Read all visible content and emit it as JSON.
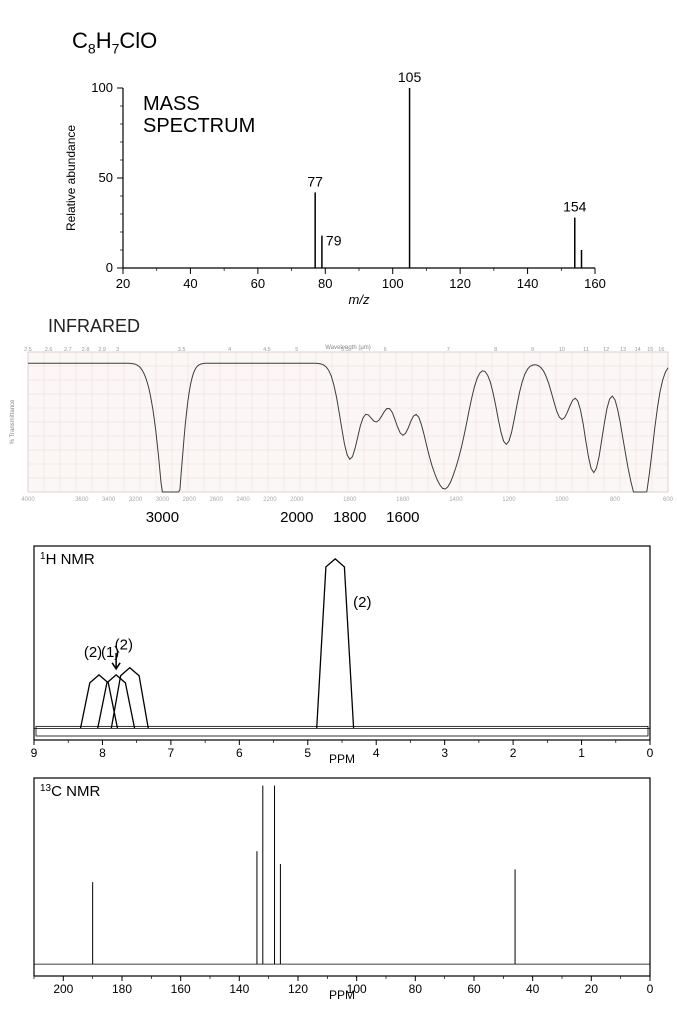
{
  "formula": {
    "text": "C8H7ClO",
    "display_html": "C<sub>8</sub>H<sub>7</sub>ClO"
  },
  "mass_spectrum": {
    "type": "bar",
    "title": "MASS\nSPECTRUM",
    "title_fontsize": 20,
    "xlabel": "m/z",
    "xlabel_fontstyle": "italic",
    "ylabel": "Relative abundance",
    "label_fontsize": 12,
    "xlim": [
      20,
      160
    ],
    "xtick_step": 20,
    "ylim": [
      0,
      100
    ],
    "ytick_step": 50,
    "minor_ytick_step": 10,
    "axis_color": "#000000",
    "line_width": 1.2,
    "background_color": "#ffffff",
    "peak_color": "#000000",
    "peak_width": 1.5,
    "peaks": [
      {
        "mz": 77,
        "abundance": 42,
        "label": "77",
        "label_pos": "top"
      },
      {
        "mz": 79,
        "abundance": 18,
        "label": "79",
        "label_pos": "right"
      },
      {
        "mz": 105,
        "abundance": 100,
        "label": "105",
        "label_pos": "top"
      },
      {
        "mz": 154,
        "abundance": 28,
        "label": "154",
        "label_pos": "top"
      },
      {
        "mz": 156,
        "abundance": 10,
        "label": null
      }
    ],
    "origin_label": "0"
  },
  "infrared": {
    "type": "line",
    "section_label": "INFRARED",
    "top_axis_label": "Wavelength (μm)",
    "top_scale_values": [
      2.5,
      2.6,
      2.7,
      2.8,
      2.9,
      3,
      3.5,
      4,
      4.5,
      5,
      5.5,
      6,
      7,
      8,
      9,
      10,
      11,
      12,
      13,
      14,
      15,
      16
    ],
    "top_scale_fontsize": 7,
    "xlabel": "Wavenumber (cm⁻¹)",
    "ylabel": "% Transmittance",
    "background_color": "#fbf7f6",
    "grid_color": "#f3d9d6",
    "grid_on": true,
    "trace_color": "#3d3d3d",
    "trace_width": 1,
    "bottom_scale_values_fine": [
      4000,
      3600,
      3400,
      3200,
      3000,
      2800,
      2600,
      2400,
      2200
    ],
    "bottom_scale_values_coarse": [
      2000,
      1800,
      1600,
      1400,
      1200,
      1000,
      800,
      600
    ],
    "bold_ticks": [
      "3000",
      "2000",
      "1800",
      "1600"
    ],
    "bold_tick_fontsize": 15,
    "absorption_bands": [
      {
        "cm": 3050,
        "depth": 0.18
      },
      {
        "cm": 2960,
        "depth": 0.82
      },
      {
        "cm": 2900,
        "depth": 0.72
      },
      {
        "cm": 1800,
        "depth": 0.68
      },
      {
        "cm": 1700,
        "depth": 0.4
      },
      {
        "cm": 1600,
        "depth": 0.5
      },
      {
        "cm": 1500,
        "depth": 0.5
      },
      {
        "cm": 1440,
        "depth": 0.68
      },
      {
        "cm": 1380,
        "depth": 0.45
      },
      {
        "cm": 1210,
        "depth": 0.58
      },
      {
        "cm": 1000,
        "depth": 0.4
      },
      {
        "cm": 880,
        "depth": 0.78
      },
      {
        "cm": 750,
        "depth": 0.55
      },
      {
        "cm": 690,
        "depth": 0.88
      }
    ]
  },
  "hnmr": {
    "type": "line",
    "label": "¹H NMR",
    "label_display_html": "<sup>1</sup>H NMR",
    "xlabel": "PPM",
    "xlim": [
      0,
      9
    ],
    "xtick_step": 1,
    "background_color": "#ffffff",
    "border_color": "#000000",
    "baseline_y": 0.94,
    "trace_color": "#000000",
    "peak_width": 0.015,
    "peaks": [
      {
        "ppm": 8.05,
        "height": 0.3,
        "integration": "(2)"
      },
      {
        "ppm": 7.8,
        "height": 0.3,
        "integration": "(1)",
        "arrow": true
      },
      {
        "ppm": 7.6,
        "height": 0.34,
        "integration": "(2)"
      },
      {
        "ppm": 4.6,
        "height": 0.95,
        "integration": "(2)",
        "integration_pos": "right"
      }
    ]
  },
  "cnmr": {
    "type": "line",
    "label": "¹³C NMR",
    "label_display_html": "<sup>13</sup>C NMR",
    "xlabel": "PPM",
    "xlim": [
      0,
      210
    ],
    "xtick_step": 20,
    "background_color": "#ffffff",
    "border_color": "#000000",
    "baseline_y": 0.94,
    "trace_color": "#000000",
    "peak_width": 1,
    "peaks": [
      {
        "ppm": 190,
        "height": 0.45
      },
      {
        "ppm": 134,
        "height": 0.62
      },
      {
        "ppm": 132,
        "height": 0.98
      },
      {
        "ppm": 128,
        "height": 0.98
      },
      {
        "ppm": 126,
        "height": 0.55
      },
      {
        "ppm": 46,
        "height": 0.52
      }
    ]
  }
}
